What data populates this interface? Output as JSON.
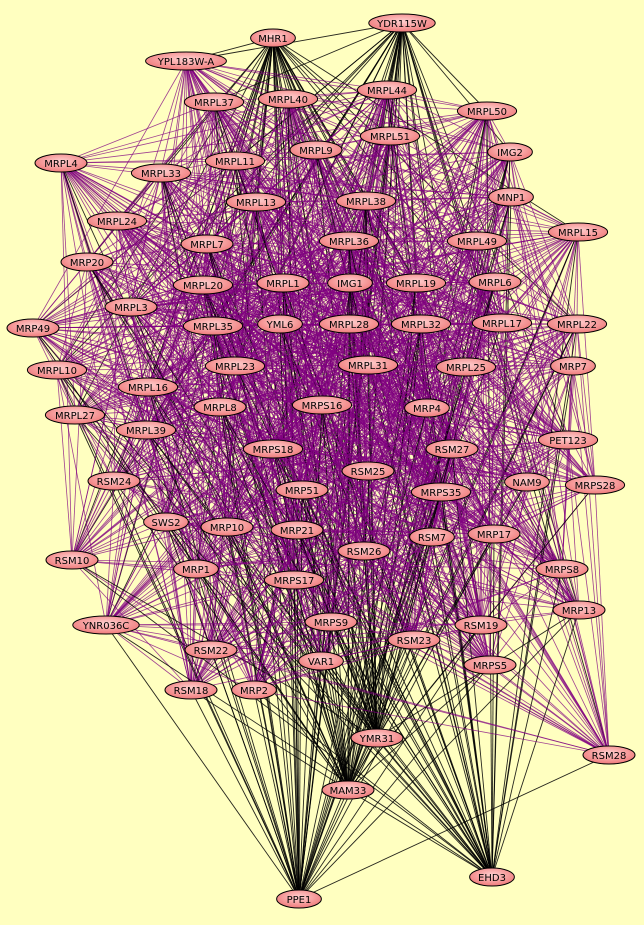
{
  "nodes": [
    {
      "label": "MHR1"
    },
    {
      "label": "YDR115W"
    },
    {
      "label": "YPL183W-A"
    },
    {
      "label": "MRPL37"
    },
    {
      "label": "MRPL40"
    },
    {
      "label": "MRPL44"
    },
    {
      "label": "MRPL50"
    },
    {
      "label": "MRPL51"
    },
    {
      "label": "MRPL9"
    },
    {
      "label": "IMG2"
    },
    {
      "label": "MRPL4"
    },
    {
      "label": "MRPL33"
    },
    {
      "label": "MRPL11"
    },
    {
      "label": "MNP1"
    },
    {
      "label": "MRPL13"
    },
    {
      "label": "MRPL38"
    },
    {
      "label": "MRPL24"
    },
    {
      "label": "MRPL15"
    },
    {
      "label": "MRPL7"
    },
    {
      "label": "MRPL36"
    },
    {
      "label": "MRPL49"
    },
    {
      "label": "MRP20"
    },
    {
      "label": "MRPL20"
    },
    {
      "label": "MRPL1"
    },
    {
      "label": "IMG1"
    },
    {
      "label": "MRPL19"
    },
    {
      "label": "MRPL6"
    },
    {
      "label": "MRPL3"
    },
    {
      "label": "MRP49"
    },
    {
      "label": "MRPL35"
    },
    {
      "label": "YML6"
    },
    {
      "label": "MRPL28"
    },
    {
      "label": "MRPL32"
    },
    {
      "label": "MRPL17"
    },
    {
      "label": "MRPL22"
    },
    {
      "label": "MRPL10"
    },
    {
      "label": "MRPL23"
    },
    {
      "label": "MRPL31"
    },
    {
      "label": "MRPL25"
    },
    {
      "label": "MRP7"
    },
    {
      "label": "MRPL16"
    },
    {
      "label": "MRPL27"
    },
    {
      "label": "MRPL8"
    },
    {
      "label": "MRPS16"
    },
    {
      "label": "MRP4"
    },
    {
      "label": "MRPL39"
    },
    {
      "label": "PET123"
    },
    {
      "label": "MRPS18"
    },
    {
      "label": "RSM27"
    },
    {
      "label": "RSM25"
    },
    {
      "label": "NAM9"
    },
    {
      "label": "MRPS28"
    },
    {
      "label": "RSM24"
    },
    {
      "label": "MRP51"
    },
    {
      "label": "MRPS35"
    },
    {
      "label": "SWS2"
    },
    {
      "label": "MRP10"
    },
    {
      "label": "MRP21"
    },
    {
      "label": "RSM7"
    },
    {
      "label": "MRP17"
    },
    {
      "label": "RSM10"
    },
    {
      "label": "RSM26"
    },
    {
      "label": "MRP1"
    },
    {
      "label": "MRPS8"
    },
    {
      "label": "MRPS17"
    },
    {
      "label": "YNR036C"
    },
    {
      "label": "MRPS9"
    },
    {
      "label": "RSM19"
    },
    {
      "label": "MRP13"
    },
    {
      "label": "RSM23"
    },
    {
      "label": "RSM22"
    },
    {
      "label": "VAR1"
    },
    {
      "label": "MRPS5"
    },
    {
      "label": "RSM18"
    },
    {
      "label": "MRP2"
    },
    {
      "label": "YMR31"
    },
    {
      "label": "RSM28"
    },
    {
      "label": "MAM33"
    },
    {
      "label": "EHD3"
    },
    {
      "label": "PPE1"
    }
  ]
}
